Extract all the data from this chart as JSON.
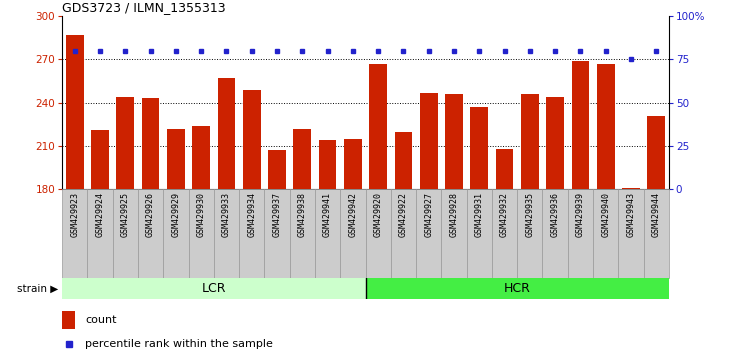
{
  "title": "GDS3723 / ILMN_1355313",
  "samples": [
    "GSM429923",
    "GSM429924",
    "GSM429925",
    "GSM429926",
    "GSM429929",
    "GSM429930",
    "GSM429933",
    "GSM429934",
    "GSM429937",
    "GSM429938",
    "GSM429941",
    "GSM429942",
    "GSM429920",
    "GSM429922",
    "GSM429927",
    "GSM429928",
    "GSM429931",
    "GSM429932",
    "GSM429935",
    "GSM429936",
    "GSM429939",
    "GSM429940",
    "GSM429943",
    "GSM429944"
  ],
  "bar_values": [
    287,
    221,
    244,
    243,
    222,
    224,
    257,
    249,
    207,
    222,
    214,
    215,
    267,
    220,
    247,
    246,
    237,
    208,
    246,
    244,
    269,
    267,
    181,
    231
  ],
  "percentile_values": [
    80,
    80,
    80,
    80,
    80,
    80,
    80,
    80,
    80,
    80,
    80,
    80,
    80,
    80,
    80,
    80,
    80,
    80,
    80,
    80,
    80,
    80,
    75,
    80
  ],
  "lcr_count": 12,
  "hcr_count": 12,
  "ylim_left": [
    180,
    300
  ],
  "ylim_right": [
    0,
    100
  ],
  "bar_color": "#cc2200",
  "dot_color": "#2222cc",
  "lcr_color": "#ccffcc",
  "hcr_color": "#44ee44",
  "cell_bg_color": "#cccccc",
  "cell_edge_color": "#999999",
  "label_color_left": "#cc2200",
  "label_color_right": "#2222cc",
  "yticks_left": [
    180,
    210,
    240,
    270,
    300
  ],
  "yticks_right": [
    0,
    25,
    50,
    75,
    100
  ],
  "ytick_right_labels": [
    "0",
    "25",
    "50",
    "75",
    "100%"
  ],
  "legend_count_label": "count",
  "legend_percentile_label": "percentile rank within the sample",
  "strain_label": "strain",
  "lcr_label": "LCR",
  "hcr_label": "HCR",
  "grid_yticks": [
    210,
    240,
    270
  ]
}
